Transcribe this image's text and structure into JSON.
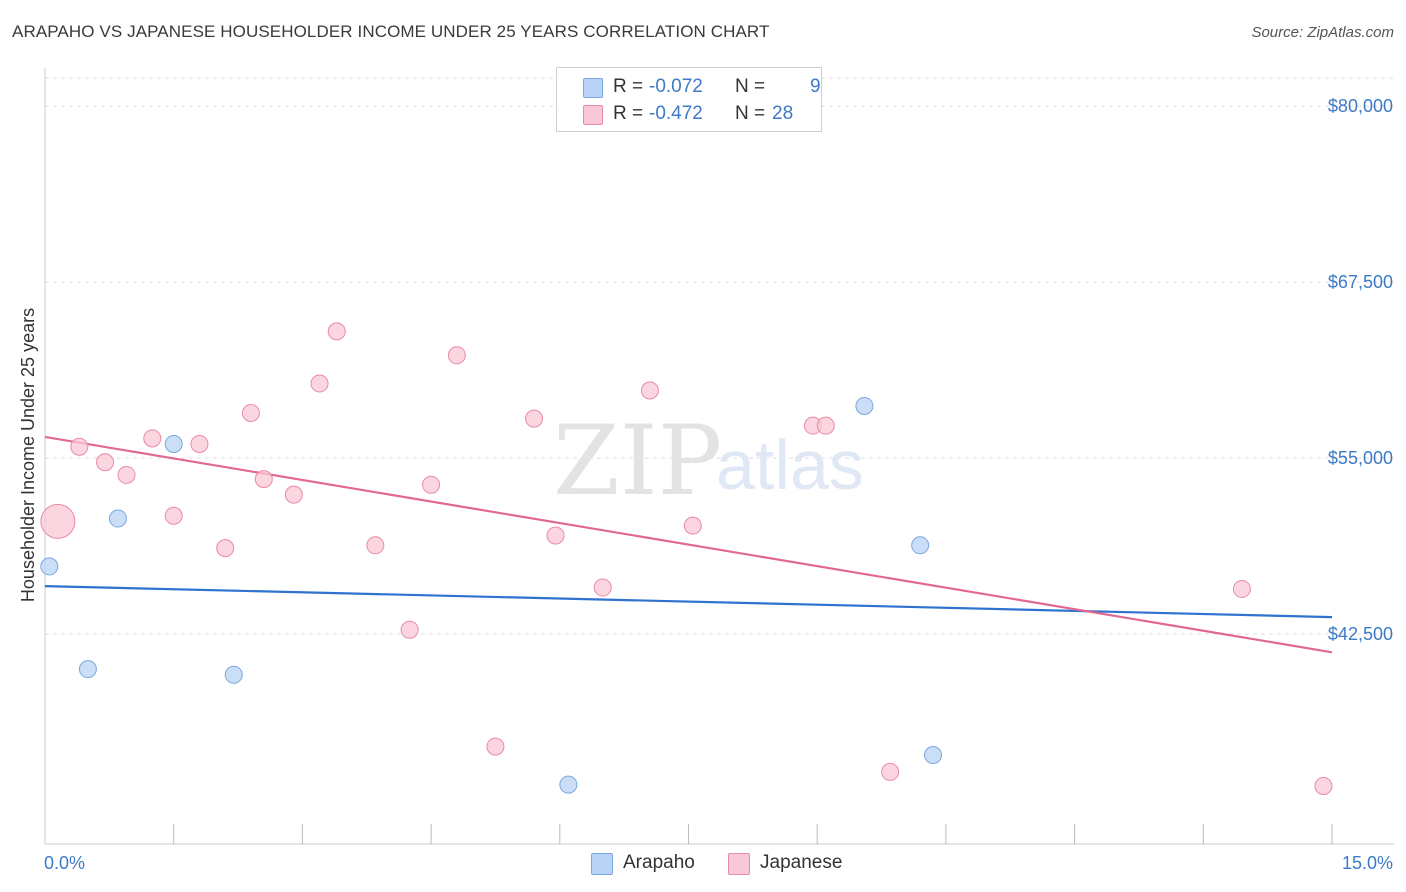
{
  "title": "ARAPAHO VS JAPANESE HOUSEHOLDER INCOME UNDER 25 YEARS CORRELATION CHART",
  "source": "Source: ZipAtlas.com",
  "legend": {
    "rows": [
      {
        "r_label": "R =",
        "r_value": "-0.072",
        "n_label": "N =",
        "n_value": "9",
        "color": "#b8d3f5",
        "border": "#7aa7df"
      },
      {
        "r_label": "R =",
        "r_value": "-0.472",
        "n_label": "N =",
        "n_value": "28",
        "color": "#f9c8d6",
        "border": "#e98aa6"
      }
    ]
  },
  "bottom_legend": [
    {
      "label": "Arapaho",
      "color": "#b8d3f5",
      "border": "#7aa7df"
    },
    {
      "label": "Japanese",
      "color": "#f9c8d6",
      "border": "#e98aa6"
    }
  ],
  "watermark": {
    "zip": "ZIP",
    "atlas": "atlas"
  },
  "chart_data": {
    "type": "scatter",
    "title": "ARAPAHO VS JAPANESE HOUSEHOLDER INCOME UNDER 25 YEARS CORRELATION CHART",
    "xlabel": "",
    "ylabel": "Householder Income Under 25 years",
    "xlim": [
      0,
      15
    ],
    "ylim": [
      29000,
      82000
    ],
    "x_tick_labels": [
      "0.0%",
      "15.0%"
    ],
    "y_ticks": [
      42500,
      55000,
      67500,
      80000
    ],
    "y_tick_labels": [
      "$42,500",
      "$55,000",
      "$67,500",
      "$80,000"
    ],
    "grid": true,
    "series": [
      {
        "name": "Arapaho",
        "color": "#b8d3f5",
        "stroke": "#7aa7df",
        "line_color": "#2f72d0",
        "points": [
          {
            "x": 0.05,
            "y": 47300,
            "s": 1
          },
          {
            "x": 0.5,
            "y": 40000,
            "s": 1
          },
          {
            "x": 0.85,
            "y": 50700,
            "s": 1
          },
          {
            "x": 1.5,
            "y": 56000,
            "s": 1
          },
          {
            "x": 2.2,
            "y": 39600,
            "s": 1
          },
          {
            "x": 6.1,
            "y": 31800,
            "s": 1
          },
          {
            "x": 9.55,
            "y": 58700,
            "s": 1
          },
          {
            "x": 10.2,
            "y": 48800,
            "s": 1
          },
          {
            "x": 10.35,
            "y": 33900,
            "s": 1
          }
        ],
        "trend": {
          "x": [
            0,
            15
          ],
          "y": [
            45900,
            43700
          ]
        }
      },
      {
        "name": "Japanese",
        "color": "#f9c8d6",
        "stroke": "#e98aa6",
        "line_color": "#e2688f",
        "points": [
          {
            "x": 0.15,
            "y": 50500,
            "s": 2
          },
          {
            "x": 0.4,
            "y": 55800,
            "s": 1
          },
          {
            "x": 0.7,
            "y": 54700,
            "s": 1
          },
          {
            "x": 0.95,
            "y": 53800,
            "s": 1
          },
          {
            "x": 1.25,
            "y": 56400,
            "s": 1
          },
          {
            "x": 1.5,
            "y": 50900,
            "s": 1
          },
          {
            "x": 1.8,
            "y": 56000,
            "s": 1
          },
          {
            "x": 2.1,
            "y": 48600,
            "s": 1
          },
          {
            "x": 2.4,
            "y": 58200,
            "s": 1
          },
          {
            "x": 2.55,
            "y": 53500,
            "s": 1
          },
          {
            "x": 2.9,
            "y": 52400,
            "s": 1
          },
          {
            "x": 3.2,
            "y": 60300,
            "s": 1
          },
          {
            "x": 3.4,
            "y": 64000,
            "s": 1
          },
          {
            "x": 3.85,
            "y": 48800,
            "s": 1
          },
          {
            "x": 4.25,
            "y": 42800,
            "s": 1
          },
          {
            "x": 4.5,
            "y": 53100,
            "s": 1
          },
          {
            "x": 4.8,
            "y": 62300,
            "s": 1
          },
          {
            "x": 5.25,
            "y": 34500,
            "s": 1
          },
          {
            "x": 5.7,
            "y": 57800,
            "s": 1
          },
          {
            "x": 5.95,
            "y": 49500,
            "s": 1
          },
          {
            "x": 6.5,
            "y": 45800,
            "s": 1
          },
          {
            "x": 7.05,
            "y": 59800,
            "s": 1
          },
          {
            "x": 7.55,
            "y": 50200,
            "s": 1
          },
          {
            "x": 8.95,
            "y": 57300,
            "s": 1
          },
          {
            "x": 9.1,
            "y": 57300,
            "s": 1
          },
          {
            "x": 9.85,
            "y": 32700,
            "s": 1
          },
          {
            "x": 13.95,
            "y": 45700,
            "s": 1
          },
          {
            "x": 14.9,
            "y": 31700,
            "s": 1
          }
        ],
        "trend": {
          "x": [
            0,
            15
          ],
          "y": [
            56500,
            41200
          ]
        }
      }
    ]
  }
}
